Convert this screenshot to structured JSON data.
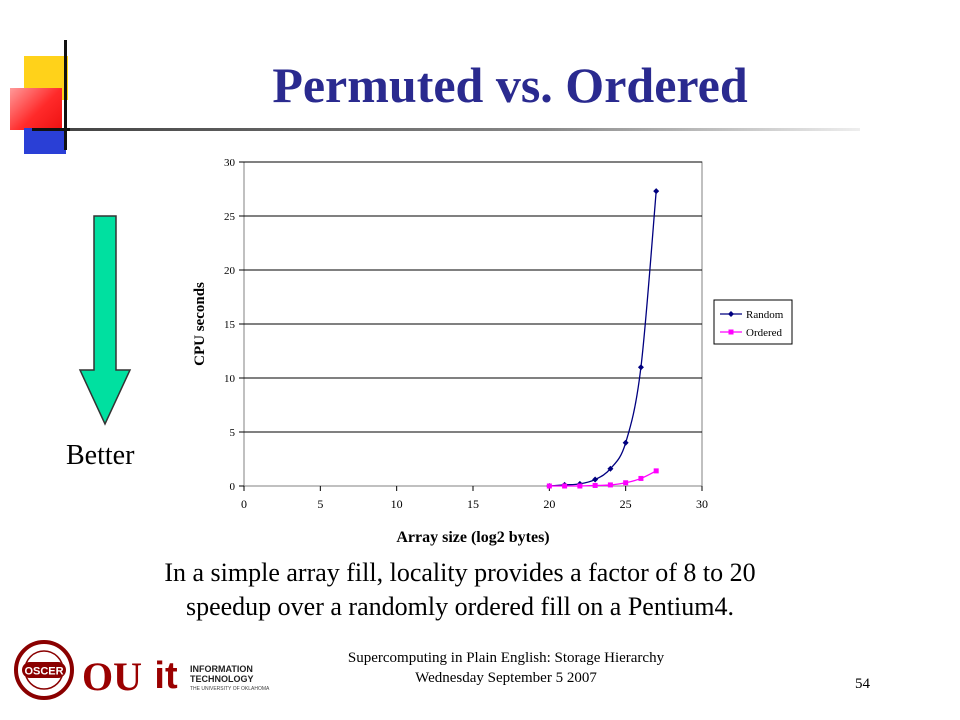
{
  "slide": {
    "title": "Permuted vs. Ordered",
    "better_label": "Better",
    "caption_line1": "In a simple array fill, locality provides a factor of 8 to 20",
    "caption_line2": "speedup over a randomly ordered fill on a Pentium4.",
    "footer_line1": "Supercomputing in Plain English: Storage Hierarchy",
    "footer_line2": "Wednesday September 5 2007",
    "slide_number": "54",
    "logos": {
      "oscer": "OSCER",
      "ou": "OU",
      "it": "it",
      "it_line1": "INFORMATION",
      "it_line2": "TECHNOLOGY",
      "it_line3": "THE UNIVERSITY OF OKLAHOMA"
    },
    "colors": {
      "title": "#2a2a8f",
      "arrow_fill": "#00e0a0",
      "random_series": "#000080",
      "ordered_series": "#ff00ff",
      "ou_crimson": "#9a0000"
    }
  },
  "chart_data": {
    "type": "line",
    "title": "",
    "xlabel": "Array size (log2 bytes)",
    "ylabel": "CPU seconds",
    "xlim": [
      0,
      30
    ],
    "ylim": [
      0,
      30
    ],
    "xticks": [
      0,
      5,
      10,
      15,
      20,
      25,
      30
    ],
    "yticks": [
      0,
      5,
      10,
      15,
      20,
      25,
      30
    ],
    "grid": "horizontal",
    "legend_position": "right",
    "series": [
      {
        "name": "Random",
        "color": "#000080",
        "marker": "diamond",
        "x": [
          20,
          21,
          22,
          23,
          24,
          25,
          26,
          27
        ],
        "y": [
          0.0,
          0.1,
          0.2,
          0.6,
          1.6,
          4.0,
          11.0,
          27.3
        ]
      },
      {
        "name": "Ordered",
        "color": "#ff00ff",
        "marker": "square",
        "x": [
          20,
          21,
          22,
          23,
          24,
          25,
          26,
          27
        ],
        "y": [
          0.0,
          0.0,
          0.0,
          0.05,
          0.1,
          0.3,
          0.7,
          1.4
        ]
      }
    ]
  }
}
